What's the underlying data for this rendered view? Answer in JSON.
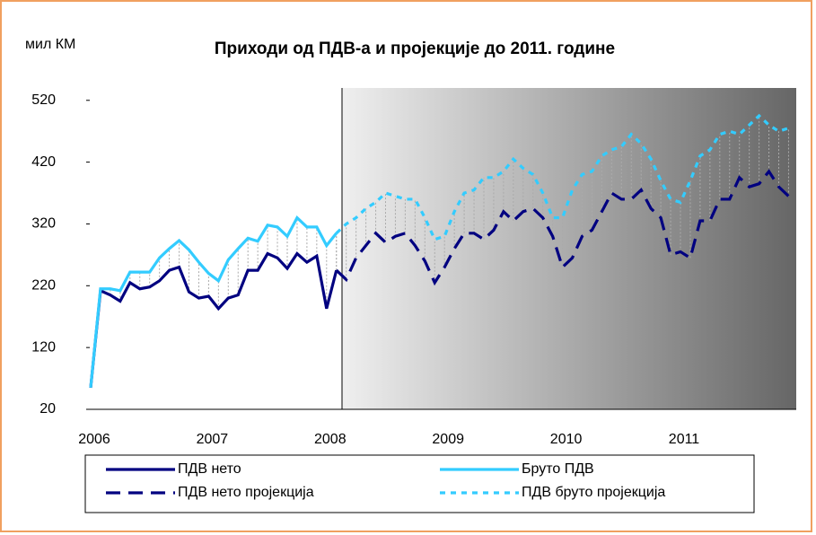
{
  "chart_data": {
    "type": "line",
    "title": "Приходи од ПДВ-а и пројекције до 2011. године",
    "y_label": "мил КМ",
    "categories": [
      "2006",
      null,
      null,
      null,
      null,
      null,
      null,
      null,
      null,
      null,
      null,
      null,
      "2007",
      null,
      null,
      null,
      null,
      null,
      null,
      null,
      null,
      null,
      null,
      null,
      "2008",
      null,
      null,
      null,
      null,
      null,
      null,
      null,
      null,
      null,
      null,
      null,
      "2009",
      null,
      null,
      null,
      null,
      null,
      null,
      null,
      null,
      null,
      null,
      null,
      "2010",
      null,
      null,
      null,
      null,
      null,
      null,
      null,
      null,
      null,
      null,
      null,
      "2011",
      null,
      null,
      null,
      null,
      null,
      null,
      null,
      null,
      null,
      null,
      null
    ],
    "series": [
      {
        "name": "ПДВ нето",
        "color": "#000080",
        "style": "solid",
        "values": [
          55,
          212,
          205,
          195,
          225,
          215,
          218,
          228,
          245,
          250,
          210,
          200,
          203,
          183,
          200,
          205,
          245,
          245,
          272,
          265,
          248,
          272,
          258,
          268,
          183,
          245,
          null,
          null,
          null,
          null,
          null,
          null,
          null,
          null,
          null,
          null,
          null,
          null,
          null,
          null,
          null,
          null,
          null,
          null,
          null,
          null,
          null,
          null,
          null,
          null,
          null,
          null,
          null,
          null,
          null,
          null,
          null,
          null,
          null,
          null,
          null,
          null,
          null,
          null,
          null,
          null,
          null,
          null,
          null,
          null,
          null,
          null
        ]
      },
      {
        "name": "Бруто ПДВ",
        "color": "#33ccff",
        "style": "solid",
        "values": [
          55,
          215,
          215,
          212,
          242,
          242,
          242,
          265,
          280,
          293,
          278,
          258,
          240,
          228,
          262,
          280,
          297,
          292,
          318,
          315,
          300,
          330,
          315,
          315,
          285,
          305,
          null,
          null,
          null,
          null,
          null,
          null,
          null,
          null,
          null,
          null,
          null,
          null,
          null,
          null,
          null,
          null,
          null,
          null,
          null,
          null,
          null,
          null,
          null,
          null,
          null,
          null,
          null,
          null,
          null,
          null,
          null,
          null,
          null,
          null,
          null,
          null,
          null,
          null,
          null,
          null,
          null,
          null,
          null,
          null,
          null,
          null
        ]
      },
      {
        "name": "ПДВ нето пројекција",
        "color": "#000080",
        "style": "dashed",
        "values": [
          null,
          null,
          null,
          null,
          null,
          null,
          null,
          null,
          null,
          null,
          null,
          null,
          null,
          null,
          null,
          null,
          null,
          null,
          null,
          null,
          null,
          null,
          null,
          null,
          null,
          245,
          230,
          265,
          285,
          305,
          290,
          300,
          305,
          285,
          260,
          225,
          250,
          280,
          305,
          305,
          295,
          310,
          340,
          325,
          340,
          345,
          330,
          300,
          250,
          265,
          300,
          310,
          340,
          370,
          360,
          360,
          375,
          345,
          330,
          270,
          275,
          265,
          325,
          325,
          360,
          360,
          395,
          380,
          385,
          405,
          380,
          365
        ]
      },
      {
        "name": "ПДВ бруто пројекција",
        "color": "#33ccff",
        "style": "dotted",
        "values": [
          null,
          null,
          null,
          null,
          null,
          null,
          null,
          null,
          null,
          null,
          null,
          null,
          null,
          null,
          null,
          null,
          null,
          null,
          null,
          null,
          null,
          null,
          null,
          null,
          null,
          305,
          320,
          330,
          345,
          355,
          370,
          365,
          360,
          360,
          330,
          295,
          300,
          340,
          370,
          375,
          395,
          395,
          405,
          425,
          410,
          400,
          370,
          330,
          330,
          375,
          400,
          405,
          430,
          440,
          445,
          465,
          450,
          425,
          390,
          360,
          355,
          390,
          430,
          440,
          465,
          470,
          465,
          480,
          495,
          480,
          470,
          475
        ]
      }
    ],
    "ylim": [
      20,
      540
    ],
    "yticks": [
      20,
      120,
      220,
      320,
      420,
      520
    ],
    "legend": "bottom"
  }
}
